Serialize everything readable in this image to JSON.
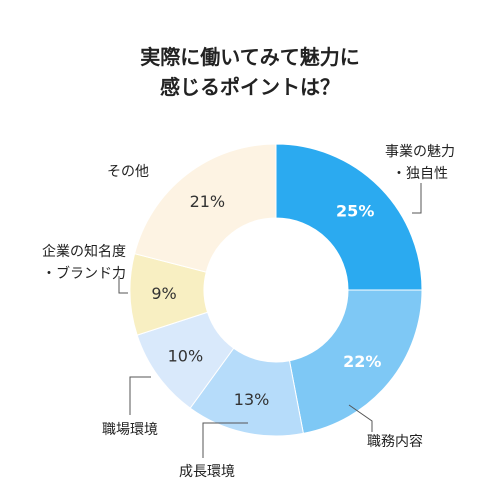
{
  "chart_data": {
    "type": "pie",
    "title_lines": [
      "実際に働いてみて魅力に",
      "感じるポイントは？"
    ],
    "categories": [
      "事業の魅力・独自性",
      "職務内容",
      "成長環境",
      "職場環境",
      "企業の知名度・ブランド力",
      "その他"
    ],
    "label_lines": [
      [
        "事業の魅力",
        "・独自性"
      ],
      [
        "職務内容"
      ],
      [
        "成長環境"
      ],
      [
        "職場環境"
      ],
      [
        "企業の知名度",
        "・ブランド力"
      ],
      [
        "その他"
      ]
    ],
    "values": [
      25,
      22,
      13,
      10,
      9,
      21
    ],
    "value_labels": [
      "25%",
      "22%",
      "13%",
      "10%",
      "9%",
      "21%"
    ],
    "colors": [
      "#2baaf0",
      "#7ec8f5",
      "#b6dcfa",
      "#d9e9fb",
      "#f8efc2",
      "#fdf3e3"
    ],
    "value_label_colors": [
      "#ffffff",
      "#ffffff",
      "#333333",
      "#333333",
      "#333333",
      "#333333"
    ],
    "start_angle_deg": 0,
    "direction": "clockwise",
    "legend": "none"
  }
}
